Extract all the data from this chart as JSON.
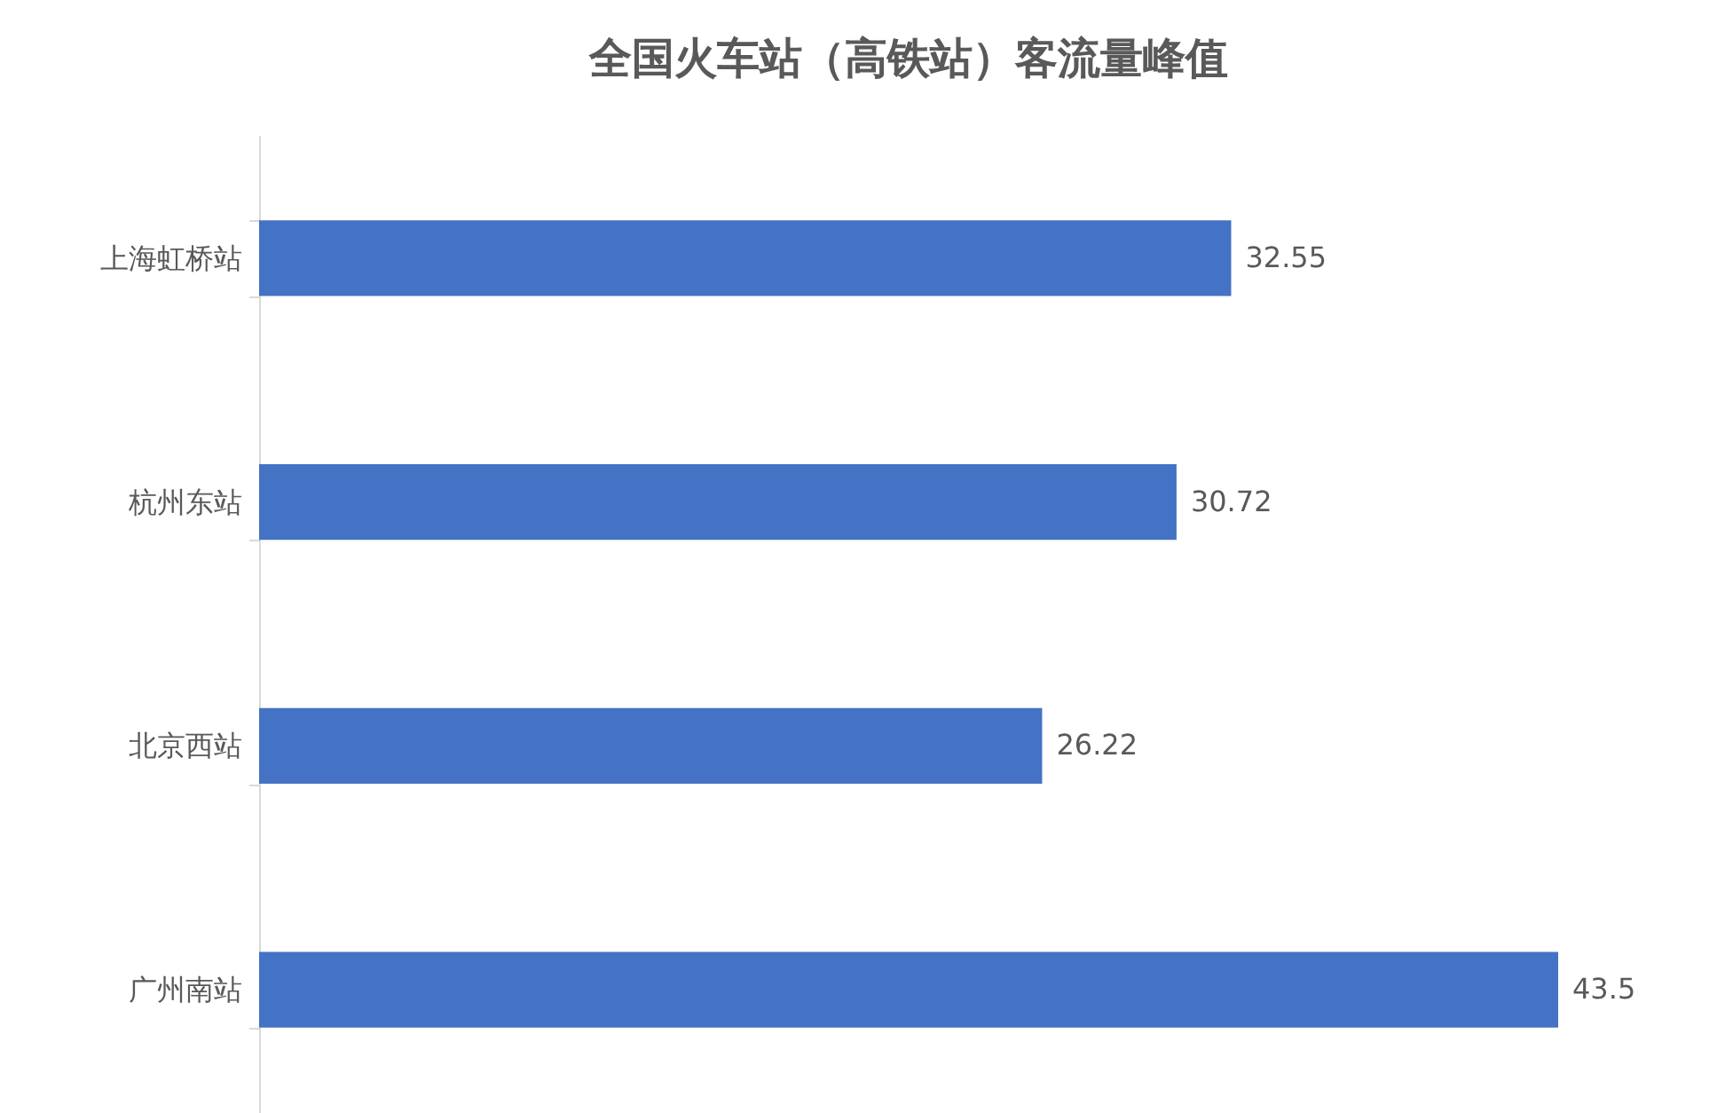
{
  "chart_data": {
    "type": "bar",
    "orientation": "horizontal",
    "title": "全国火车站（高铁站）客流量峰值",
    "categories": [
      "上海虹桥站",
      "杭州东站",
      "北京西站",
      "广州南站"
    ],
    "values": [
      32.55,
      30.72,
      26.22,
      43.5
    ],
    "color": "#4472c4",
    "data_labels": true
  }
}
